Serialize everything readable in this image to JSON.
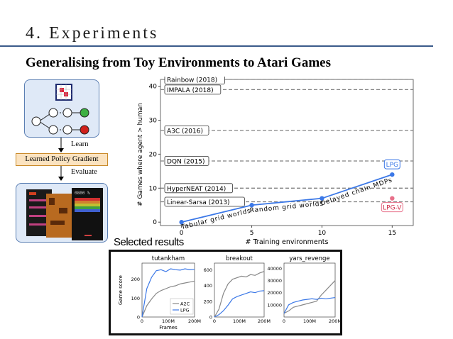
{
  "slide": {
    "title": "4. Experiments",
    "subtitle": "Generalising from Toy Environments to Atari Games"
  },
  "diagram": {
    "learn_label": "Learn",
    "lpg_label": "Learned Policy Gradient",
    "evaluate_label": "Evaluate",
    "atari_score_text": "0800 %"
  },
  "chart_data": [
    {
      "type": "line",
      "title": "",
      "xlabel": "# Training environments",
      "ylabel": "# Games where agent > human",
      "xlim": [
        -1.5,
        16.5
      ],
      "ylim": [
        -1,
        42
      ],
      "xticks": [
        0,
        5,
        10,
        15
      ],
      "yticks": [
        0,
        10,
        20,
        30,
        40
      ],
      "grid": false,
      "series": [
        {
          "name": "LPG",
          "x": [
            0,
            5,
            10,
            15
          ],
          "y": [
            0,
            5,
            7,
            14
          ],
          "color": "#3b78e7"
        }
      ],
      "points": [
        {
          "name": "LPG-V",
          "x": 15,
          "y": 7,
          "color": "#e8708a"
        }
      ],
      "baselines": [
        {
          "label": "Rainbow (2018)",
          "y": 42
        },
        {
          "label": "IMPALA (2018)",
          "y": 39
        },
        {
          "label": "A3C (2016)",
          "y": 27
        },
        {
          "label": "DQN (2015)",
          "y": 18
        },
        {
          "label": "HyperNEAT (2014)",
          "y": 10
        },
        {
          "label": "Linear-Sarsa (2013)",
          "y": 6
        }
      ],
      "segment_labels": [
        "Tabular grid worlds",
        "Random grid worlds",
        "Delayed chain MDPs"
      ],
      "annotations": [
        "LPG",
        "LPG-V"
      ],
      "colors": {
        "baseline": "#808080",
        "lpg": "#3b78e7",
        "lpgv": "#e8708a"
      }
    },
    {
      "type": "line",
      "title": "tutankham",
      "xlabel": "Frames",
      "ylabel": "Game score",
      "xticks": [
        "0",
        "100M",
        "200M"
      ],
      "yticks": [
        0,
        100,
        200
      ],
      "ylim": [
        0,
        270
      ],
      "legend": "bottom-right",
      "series": [
        {
          "name": "A2C",
          "values": [
            0,
            60,
            95,
            125,
            140,
            150,
            160,
            165,
            175,
            180,
            185,
            190
          ],
          "color": "#888888"
        },
        {
          "name": "LPG",
          "values": [
            0,
            150,
            210,
            245,
            250,
            240,
            255,
            250,
            248,
            255,
            250,
            252
          ],
          "color": "#3b78e7"
        }
      ]
    },
    {
      "type": "line",
      "title": "breakout",
      "xticks": [
        "0",
        "100M",
        "200M"
      ],
      "yticks": [
        0,
        200,
        400,
        600
      ],
      "ylim": [
        0,
        650
      ],
      "series": [
        {
          "name": "A2C",
          "values": [
            0,
            100,
            300,
            420,
            480,
            500,
            520,
            510,
            540,
            530,
            560,
            580
          ],
          "color": "#888888"
        },
        {
          "name": "LPG",
          "values": [
            0,
            30,
            80,
            150,
            230,
            260,
            280,
            300,
            320,
            310,
            330,
            335
          ],
          "color": "#3b78e7"
        }
      ]
    },
    {
      "type": "line",
      "title": "yars_revenge",
      "xticks": [
        "0",
        "100M",
        "200M"
      ],
      "yticks": [
        10000,
        20000,
        30000,
        40000
      ],
      "ylim": [
        0,
        42000
      ],
      "series": [
        {
          "name": "A2C",
          "values": [
            3000,
            5000,
            8000,
            9000,
            10000,
            11000,
            12000,
            13000,
            18000,
            22000,
            26000,
            30000
          ],
          "color": "#888888"
        },
        {
          "name": "LPG",
          "values": [
            3000,
            10000,
            12000,
            13000,
            14000,
            14500,
            15000,
            14500,
            15500,
            15000,
            15500,
            16000
          ],
          "color": "#3b78e7"
        }
      ]
    }
  ],
  "results": {
    "heading": "Selected results"
  }
}
